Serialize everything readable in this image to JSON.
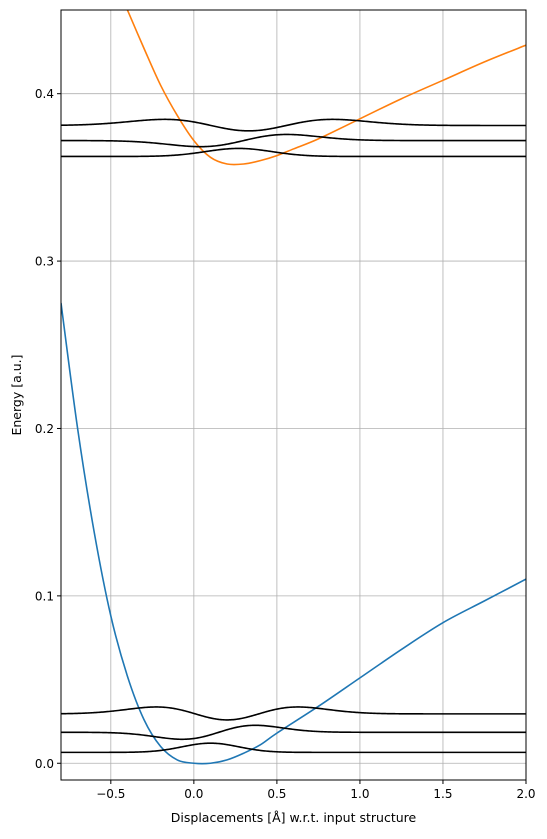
{
  "chart_data": {
    "type": "line",
    "title": "",
    "xlabel": "Displacements [Å] w.r.t. input structure",
    "ylabel": "Energy [a.u.]",
    "xlim": [
      -0.8,
      2.0
    ],
    "ylim": [
      -0.01,
      0.45
    ],
    "grid": true,
    "x_ticks": [
      -0.5,
      0.0,
      0.5,
      1.0,
      1.5,
      2.0
    ],
    "x_tick_labels": [
      "−0.5",
      "0.0",
      "0.5",
      "1.0",
      "1.5",
      "2.0"
    ],
    "y_ticks": [
      0.0,
      0.1,
      0.2,
      0.3,
      0.4
    ],
    "y_tick_labels": [
      "0.0",
      "0.1",
      "0.2",
      "0.3",
      "0.4"
    ],
    "series": [
      {
        "role": "ground-state-potential",
        "color": "#1f77b4",
        "x": [
          -0.8,
          -0.7,
          -0.6,
          -0.5,
          -0.4,
          -0.3,
          -0.2,
          -0.1,
          0.0,
          0.1,
          0.2,
          0.3,
          0.4,
          0.5,
          0.75,
          1.0,
          1.25,
          1.5,
          1.75,
          2.0
        ],
        "y": [
          0.275,
          0.2,
          0.138,
          0.088,
          0.052,
          0.026,
          0.01,
          0.002,
          0.0,
          0.0,
          0.002,
          0.006,
          0.011,
          0.018,
          0.034,
          0.051,
          0.068,
          0.084,
          0.097,
          0.11
        ]
      },
      {
        "role": "excited-state-potential",
        "color": "#ff7f0e",
        "x": [
          -0.4,
          -0.3,
          -0.2,
          -0.1,
          0.0,
          0.1,
          0.2,
          0.3,
          0.4,
          0.5,
          0.6,
          0.75,
          1.0,
          1.25,
          1.5,
          1.75,
          2.0
        ],
        "y": [
          0.45,
          0.427,
          0.405,
          0.387,
          0.372,
          0.362,
          0.358,
          0.358,
          0.36,
          0.363,
          0.367,
          0.373,
          0.385,
          0.397,
          0.408,
          0.419,
          0.429
        ]
      }
    ],
    "vibrational_levels": [
      {
        "state": "ground",
        "energy": 0.0065,
        "nodes": 0,
        "center": 0.1,
        "width": 0.17,
        "amplitude": 0.0055
      },
      {
        "state": "ground",
        "energy": 0.0185,
        "nodes": 1,
        "center": 0.15,
        "width": 0.22,
        "amplitude": 0.004
      },
      {
        "state": "ground",
        "energy": 0.0295,
        "nodes": 2,
        "center": 0.2,
        "width": 0.27,
        "amplitude": 0.0036
      },
      {
        "state": "excited",
        "energy": 0.3625,
        "nodes": 0,
        "center": 0.27,
        "width": 0.2,
        "amplitude": 0.0048
      },
      {
        "state": "excited",
        "energy": 0.372,
        "nodes": 1,
        "center": 0.3,
        "width": 0.26,
        "amplitude": 0.0035
      },
      {
        "state": "excited",
        "energy": 0.381,
        "nodes": 2,
        "center": 0.33,
        "width": 0.32,
        "amplitude": 0.0032
      }
    ]
  }
}
